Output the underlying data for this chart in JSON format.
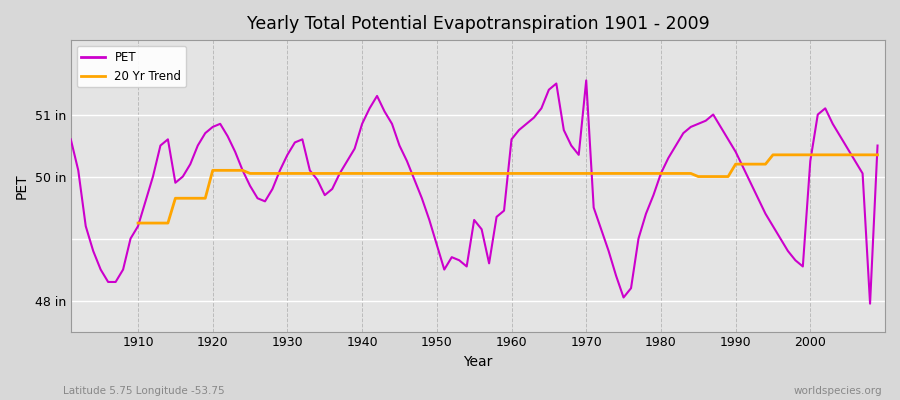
{
  "title": "Yearly Total Potential Evapotranspiration 1901 - 2009",
  "xlabel": "Year",
  "ylabel": "PET",
  "footnote_left": "Latitude 5.75 Longitude -53.75",
  "footnote_right": "worldspecies.org",
  "ylim": [
    47.5,
    52.2
  ],
  "yticks": [
    48,
    50
  ],
  "ytick_labels": [
    "48 in",
    "50 in"
  ],
  "y_extra_ticks": [
    51
  ],
  "y_extra_labels": [
    "51 in"
  ],
  "pet_color": "#cc00cc",
  "trend_color": "#ffa500",
  "fig_bg": "#d8d8d8",
  "plot_bg": "#e4e4e4",
  "xlim_start": 1901,
  "xlim_end": 2010,
  "xticks": [
    1910,
    1920,
    1930,
    1940,
    1950,
    1960,
    1970,
    1980,
    1990,
    2000
  ],
  "pet_years": [
    1901,
    1902,
    1903,
    1904,
    1905,
    1906,
    1907,
    1908,
    1909,
    1910,
    1911,
    1912,
    1913,
    1914,
    1915,
    1916,
    1917,
    1918,
    1919,
    1920,
    1921,
    1922,
    1923,
    1924,
    1925,
    1926,
    1927,
    1928,
    1929,
    1930,
    1931,
    1932,
    1933,
    1934,
    1935,
    1936,
    1937,
    1938,
    1939,
    1940,
    1941,
    1942,
    1943,
    1944,
    1945,
    1946,
    1947,
    1948,
    1949,
    1950,
    1951,
    1952,
    1953,
    1954,
    1955,
    1956,
    1957,
    1958,
    1959,
    1960,
    1961,
    1962,
    1963,
    1964,
    1965,
    1966,
    1967,
    1968,
    1969,
    1970,
    1971,
    1972,
    1973,
    1974,
    1975,
    1976,
    1977,
    1978,
    1979,
    1980,
    1981,
    1982,
    1983,
    1984,
    1985,
    1986,
    1987,
    1988,
    1989,
    1990,
    1991,
    1992,
    1993,
    1994,
    1995,
    1996,
    1997,
    1998,
    1999,
    2000,
    2001,
    2002,
    2003,
    2004,
    2005,
    2006,
    2007,
    2008,
    2009
  ],
  "pet_values": [
    50.6,
    50.1,
    49.2,
    48.8,
    48.5,
    48.3,
    48.3,
    48.5,
    49.0,
    49.2,
    49.6,
    50.0,
    50.5,
    50.6,
    49.9,
    50.0,
    50.2,
    50.5,
    50.7,
    50.8,
    50.85,
    50.65,
    50.4,
    50.1,
    49.85,
    49.65,
    49.6,
    49.8,
    50.1,
    50.35,
    50.55,
    50.6,
    50.1,
    49.95,
    49.7,
    49.8,
    50.05,
    50.25,
    50.45,
    50.85,
    51.1,
    51.3,
    51.05,
    50.85,
    50.5,
    50.25,
    49.95,
    49.65,
    49.3,
    48.9,
    48.5,
    48.7,
    48.65,
    48.55,
    49.3,
    49.15,
    48.6,
    49.35,
    49.45,
    50.6,
    50.75,
    50.85,
    50.95,
    51.1,
    51.4,
    51.5,
    50.75,
    50.5,
    50.35,
    51.55,
    49.5,
    49.15,
    48.8,
    48.4,
    48.05,
    48.2,
    49.0,
    49.4,
    49.7,
    50.05,
    50.3,
    50.5,
    50.7,
    50.8,
    50.85,
    50.9,
    51.0,
    50.8,
    50.6,
    50.4,
    50.15,
    49.9,
    49.65,
    49.4,
    49.2,
    49.0,
    48.8,
    48.65,
    48.55,
    50.25,
    51.0,
    51.1,
    50.85,
    50.65,
    50.45,
    50.25,
    50.05,
    47.95,
    50.5
  ],
  "trend_years": [
    1910,
    1911,
    1912,
    1913,
    1914,
    1915,
    1916,
    1917,
    1918,
    1919,
    1920,
    1921,
    1922,
    1923,
    1924,
    1925,
    1926,
    1927,
    1928,
    1929,
    1930,
    1931,
    1932,
    1933,
    1934,
    1935,
    1936,
    1937,
    1938,
    1939,
    1940,
    1941,
    1942,
    1943,
    1944,
    1945,
    1946,
    1947,
    1948,
    1949,
    1950,
    1951,
    1952,
    1953,
    1954,
    1955,
    1956,
    1957,
    1958,
    1959,
    1960,
    1961,
    1962,
    1963,
    1964,
    1965,
    1966,
    1967,
    1968,
    1969,
    1970,
    1971,
    1972,
    1973,
    1974,
    1975,
    1976,
    1977,
    1978,
    1979,
    1980,
    1981,
    1982,
    1983,
    1984,
    1985,
    1986,
    1987,
    1988,
    1989,
    1990,
    1991,
    1992,
    1993,
    1994,
    1995,
    1996,
    1997,
    1998,
    1999,
    2000,
    2001,
    2002,
    2003,
    2004,
    2005,
    2006,
    2007,
    2008,
    2009
  ],
  "trend_values": [
    49.25,
    49.25,
    49.25,
    49.25,
    49.25,
    49.65,
    49.65,
    49.65,
    49.65,
    49.65,
    50.1,
    50.1,
    50.1,
    50.1,
    50.1,
    50.05,
    50.05,
    50.05,
    50.05,
    50.05,
    50.05,
    50.05,
    50.05,
    50.05,
    50.05,
    50.05,
    50.05,
    50.05,
    50.05,
    50.05,
    50.05,
    50.05,
    50.05,
    50.05,
    50.05,
    50.05,
    50.05,
    50.05,
    50.05,
    50.05,
    50.05,
    50.05,
    50.05,
    50.05,
    50.05,
    50.05,
    50.05,
    50.05,
    50.05,
    50.05,
    50.05,
    50.05,
    50.05,
    50.05,
    50.05,
    50.05,
    50.05,
    50.05,
    50.05,
    50.05,
    50.05,
    50.05,
    50.05,
    50.05,
    50.05,
    50.05,
    50.05,
    50.05,
    50.05,
    50.05,
    50.05,
    50.05,
    50.05,
    50.05,
    50.05,
    50.0,
    50.0,
    50.0,
    50.0,
    50.0,
    50.2,
    50.2,
    50.2,
    50.2,
    50.2,
    50.35,
    50.35,
    50.35,
    50.35,
    50.35,
    50.35,
    50.35,
    50.35,
    50.35,
    50.35,
    50.35,
    50.35,
    50.35,
    50.35,
    50.35
  ]
}
